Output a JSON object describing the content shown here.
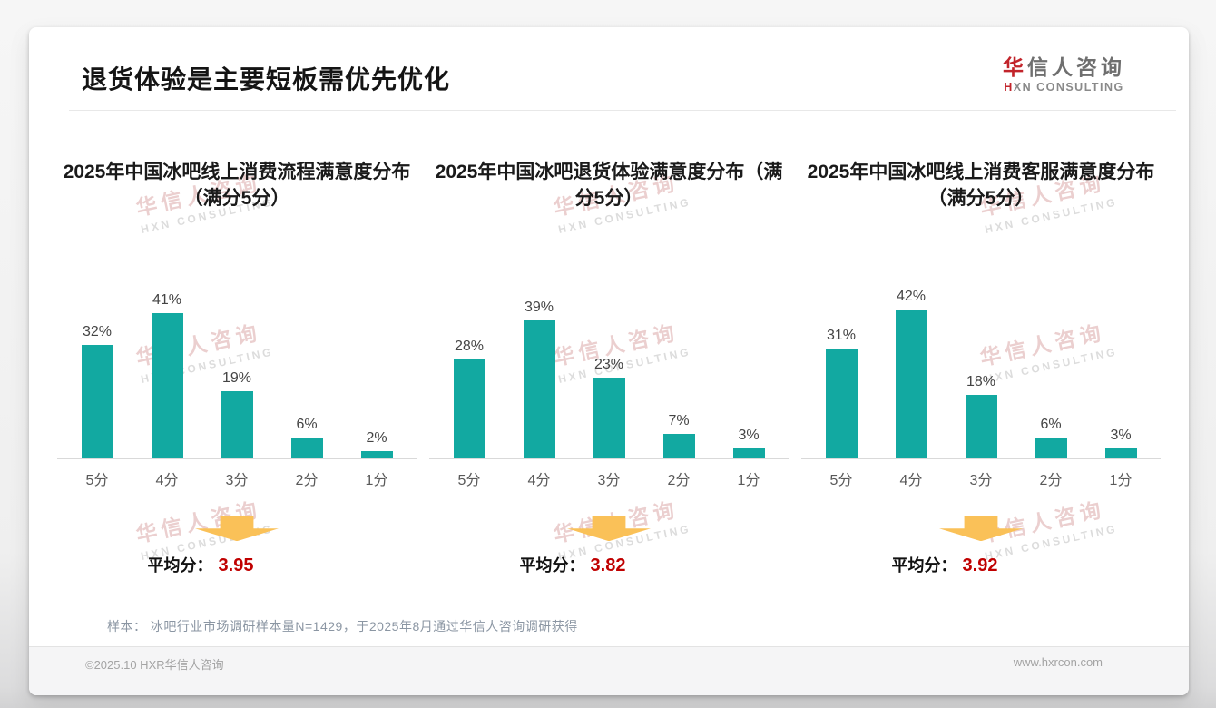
{
  "header": {
    "title": "退货体验是主要短板需优先优化",
    "logo": {
      "zh_accent": "华",
      "zh_rest": "信人咨询",
      "en_accent": "H",
      "en_rest": "XN CONSULTING"
    }
  },
  "chart_data": [
    {
      "type": "bar",
      "title": "2025年中国冰吧线上消费流程满意度分布（满分5分）",
      "categories": [
        "5分",
        "4分",
        "3分",
        "2分",
        "1分"
      ],
      "values": [
        32,
        41,
        19,
        6,
        2
      ],
      "value_suffix": "%",
      "ylim": [
        0,
        45
      ],
      "grid": false,
      "annotations": {
        "avg_label": "平均分：",
        "avg_value": "3.95"
      }
    },
    {
      "type": "bar",
      "title": "2025年中国冰吧退货体验满意度分布（满分5分）",
      "categories": [
        "5分",
        "4分",
        "3分",
        "2分",
        "1分"
      ],
      "values": [
        28,
        39,
        23,
        7,
        3
      ],
      "value_suffix": "%",
      "ylim": [
        0,
        45
      ],
      "grid": false,
      "annotations": {
        "avg_label": "平均分：",
        "avg_value": "3.82"
      }
    },
    {
      "type": "bar",
      "title": "2025年中国冰吧线上消费客服满意度分布（满分5分）",
      "categories": [
        "5分",
        "4分",
        "3分",
        "2分",
        "1分"
      ],
      "values": [
        31,
        42,
        18,
        6,
        3
      ],
      "value_suffix": "%",
      "ylim": [
        0,
        45
      ],
      "grid": false,
      "annotations": {
        "avg_label": "平均分：",
        "avg_value": "3.92"
      }
    }
  ],
  "footnote": "样本： 冰吧行业市场调研样本量N=1429，于2025年8月通过华信人咨询调研获得",
  "footer": {
    "left": "©2025.10 HXR华信人咨询",
    "right": "www.hxrcon.com"
  },
  "watermark": {
    "zh": "华信人咨询",
    "en": "HXN CONSULTING"
  },
  "colors": {
    "bar": "#12a9a1",
    "accent_red": "#c00000",
    "arrow": "#fac158",
    "logo_red": "#c2242b"
  }
}
